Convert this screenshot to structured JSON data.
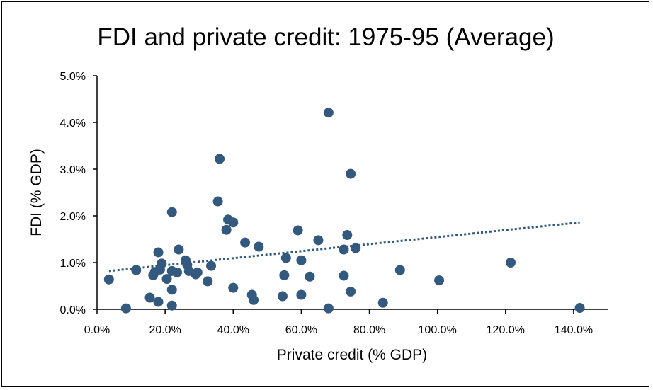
{
  "chart_data": {
    "type": "scatter",
    "title": "FDI and private credit: 1975-95 (Average)",
    "xlabel": "Private credit (% GDP)",
    "ylabel": "FDI (% GDP)",
    "xlim": [
      0,
      150
    ],
    "ylim": [
      0,
      5
    ],
    "x_ticks": [
      0,
      20,
      40,
      60,
      80,
      100,
      120,
      140
    ],
    "y_ticks": [
      0,
      1,
      2,
      3,
      4,
      5
    ],
    "x_tick_labels": [
      "0.0%",
      "20.0%",
      "40.0%",
      "60.0%",
      "80.0%",
      "100.0%",
      "120.0%",
      "140.0%"
    ],
    "y_tick_labels": [
      "0.0%",
      "1.0%",
      "2.0%",
      "3.0%",
      "4.0%",
      "5.0%"
    ],
    "grid": false,
    "legend": "none",
    "marker_color": "#33597f",
    "trendline": {
      "style": "dotted",
      "color": "#33597f",
      "x": [
        3.5,
        141.8
      ],
      "y": [
        0.82,
        1.86
      ]
    },
    "series": [
      {
        "points": [
          {
            "x": 3.5,
            "y": 0.64
          },
          {
            "x": 8.5,
            "y": 0.02
          },
          {
            "x": 11.5,
            "y": 0.84
          },
          {
            "x": 15.5,
            "y": 0.25
          },
          {
            "x": 16.5,
            "y": 0.73
          },
          {
            "x": 17.0,
            "y": 0.8
          },
          {
            "x": 18.0,
            "y": 1.22
          },
          {
            "x": 18.0,
            "y": 0.16
          },
          {
            "x": 18.5,
            "y": 0.85
          },
          {
            "x": 19.0,
            "y": 0.98
          },
          {
            "x": 20.5,
            "y": 0.65
          },
          {
            "x": 22.0,
            "y": 2.08
          },
          {
            "x": 22.0,
            "y": 0.82
          },
          {
            "x": 22.0,
            "y": 0.42
          },
          {
            "x": 22.0,
            "y": 0.08
          },
          {
            "x": 23.5,
            "y": 0.79
          },
          {
            "x": 24.0,
            "y": 1.28
          },
          {
            "x": 26.0,
            "y": 1.05
          },
          {
            "x": 26.5,
            "y": 0.95
          },
          {
            "x": 27.0,
            "y": 0.82
          },
          {
            "x": 29.0,
            "y": 0.75
          },
          {
            "x": 29.5,
            "y": 0.79
          },
          {
            "x": 32.5,
            "y": 0.6
          },
          {
            "x": 33.5,
            "y": 0.93
          },
          {
            "x": 35.5,
            "y": 2.31
          },
          {
            "x": 36.0,
            "y": 3.22
          },
          {
            "x": 38.0,
            "y": 1.7
          },
          {
            "x": 38.5,
            "y": 1.92
          },
          {
            "x": 40.0,
            "y": 1.86
          },
          {
            "x": 40.0,
            "y": 0.46
          },
          {
            "x": 43.5,
            "y": 1.43
          },
          {
            "x": 45.5,
            "y": 0.31
          },
          {
            "x": 46.0,
            "y": 0.2
          },
          {
            "x": 47.5,
            "y": 1.34
          },
          {
            "x": 54.5,
            "y": 0.28
          },
          {
            "x": 55.0,
            "y": 0.73
          },
          {
            "x": 55.5,
            "y": 1.1
          },
          {
            "x": 59.0,
            "y": 1.69
          },
          {
            "x": 60.0,
            "y": 1.05
          },
          {
            "x": 60.0,
            "y": 0.31
          },
          {
            "x": 62.5,
            "y": 0.7
          },
          {
            "x": 65.0,
            "y": 1.48
          },
          {
            "x": 68.0,
            "y": 4.21
          },
          {
            "x": 68.0,
            "y": 0.02
          },
          {
            "x": 72.5,
            "y": 1.28
          },
          {
            "x": 72.5,
            "y": 0.72
          },
          {
            "x": 73.5,
            "y": 1.59
          },
          {
            "x": 74.5,
            "y": 2.9
          },
          {
            "x": 74.5,
            "y": 0.38
          },
          {
            "x": 76.0,
            "y": 1.31
          },
          {
            "x": 84.0,
            "y": 0.14
          },
          {
            "x": 89.0,
            "y": 0.84
          },
          {
            "x": 100.5,
            "y": 0.62
          },
          {
            "x": 121.5,
            "y": 1.0
          },
          {
            "x": 141.8,
            "y": 0.03
          }
        ]
      }
    ]
  }
}
